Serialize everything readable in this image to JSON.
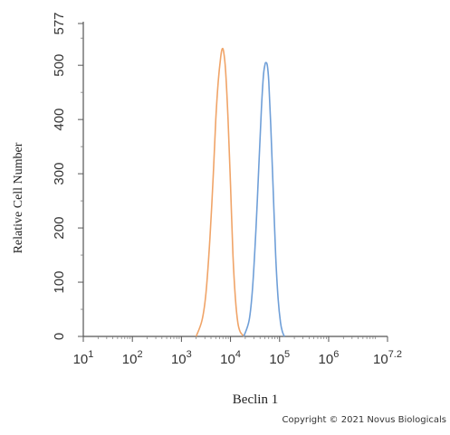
{
  "chart_data": {
    "type": "line",
    "xlabel": "Beclin 1",
    "ylabel": "Relative Cell Number",
    "x_scale": "log10",
    "xlim": [
      1,
      7.2
    ],
    "ylim": [
      0,
      577
    ],
    "x_ticks": [
      {
        "value": 1,
        "base": "10",
        "exp": "1"
      },
      {
        "value": 2,
        "base": "10",
        "exp": "2"
      },
      {
        "value": 3,
        "base": "10",
        "exp": "3"
      },
      {
        "value": 4,
        "base": "10",
        "exp": "4"
      },
      {
        "value": 5,
        "base": "10",
        "exp": "5"
      },
      {
        "value": 6,
        "base": "10",
        "exp": "6"
      },
      {
        "value": 7.2,
        "base": "10",
        "exp": "7.2"
      }
    ],
    "y_ticks": [
      0,
      100,
      200,
      300,
      400,
      500,
      577
    ],
    "grid": false,
    "series": [
      {
        "color": "#f0a468",
        "x": [
          3.3,
          3.42,
          3.5,
          3.58,
          3.65,
          3.7,
          3.75,
          3.8,
          3.83,
          3.86,
          3.9,
          3.95,
          4.0,
          4.05,
          4.1,
          4.15,
          4.2,
          4.28
        ],
        "y": [
          0,
          30,
          80,
          180,
          300,
          400,
          470,
          515,
          530,
          525,
          490,
          400,
          280,
          150,
          70,
          25,
          8,
          0
        ]
      },
      {
        "color": "#6f9fd8",
        "x": [
          4.27,
          4.38,
          4.45,
          4.52,
          4.58,
          4.63,
          4.67,
          4.7,
          4.72,
          4.75,
          4.78,
          4.82,
          4.87,
          4.92,
          4.97,
          5.02,
          5.06,
          5.1
        ],
        "y": [
          0,
          30,
          90,
          200,
          320,
          420,
          480,
          500,
          505,
          500,
          470,
          390,
          270,
          150,
          70,
          25,
          8,
          0
        ]
      }
    ]
  },
  "copyright": "Copyright © 2021 Novus Biologicals"
}
